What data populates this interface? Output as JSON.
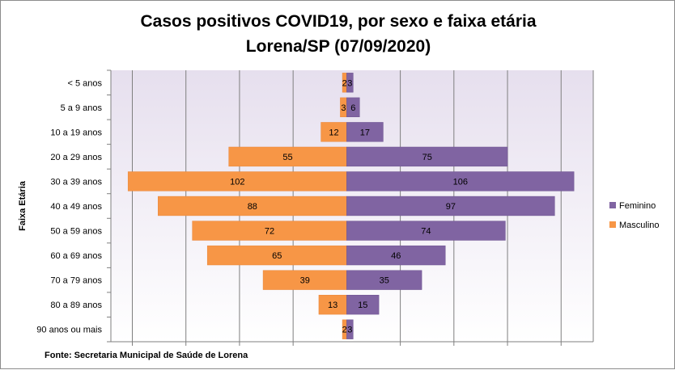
{
  "chart_data": {
    "type": "bar",
    "orientation": "horizontal-population-pyramid",
    "title_line1": "Casos positivos COVID19, por sexo e faixa etária",
    "title_line2": "Lorena/SP (07/09/2020)",
    "ylabel": "Faixa Etária",
    "source": "Fonte: Secretaria Municipal  de Saúde de Lorena",
    "categories": [
      "< 5 anos",
      "5 a 9 anos",
      "10 a 19 anos",
      "20 a 29 anos",
      "30 a 39 anos",
      "40 a 49 anos",
      "50 a 59 anos",
      "60 a 69 anos ",
      "70 a 79 anos",
      "80 a 89 anos",
      "90 anos ou mais"
    ],
    "series": [
      {
        "name": "Feminino",
        "color": "#8064a2",
        "values": [
          3,
          6,
          17,
          75,
          106,
          97,
          74,
          46,
          35,
          15,
          3
        ]
      },
      {
        "name": "Masculino",
        "color": "#f79646",
        "values": [
          2,
          3,
          12,
          55,
          102,
          88,
          72,
          65,
          39,
          13,
          2
        ]
      }
    ],
    "xlim": [
      -110,
      115
    ],
    "grid": true,
    "legend_position": "right"
  }
}
